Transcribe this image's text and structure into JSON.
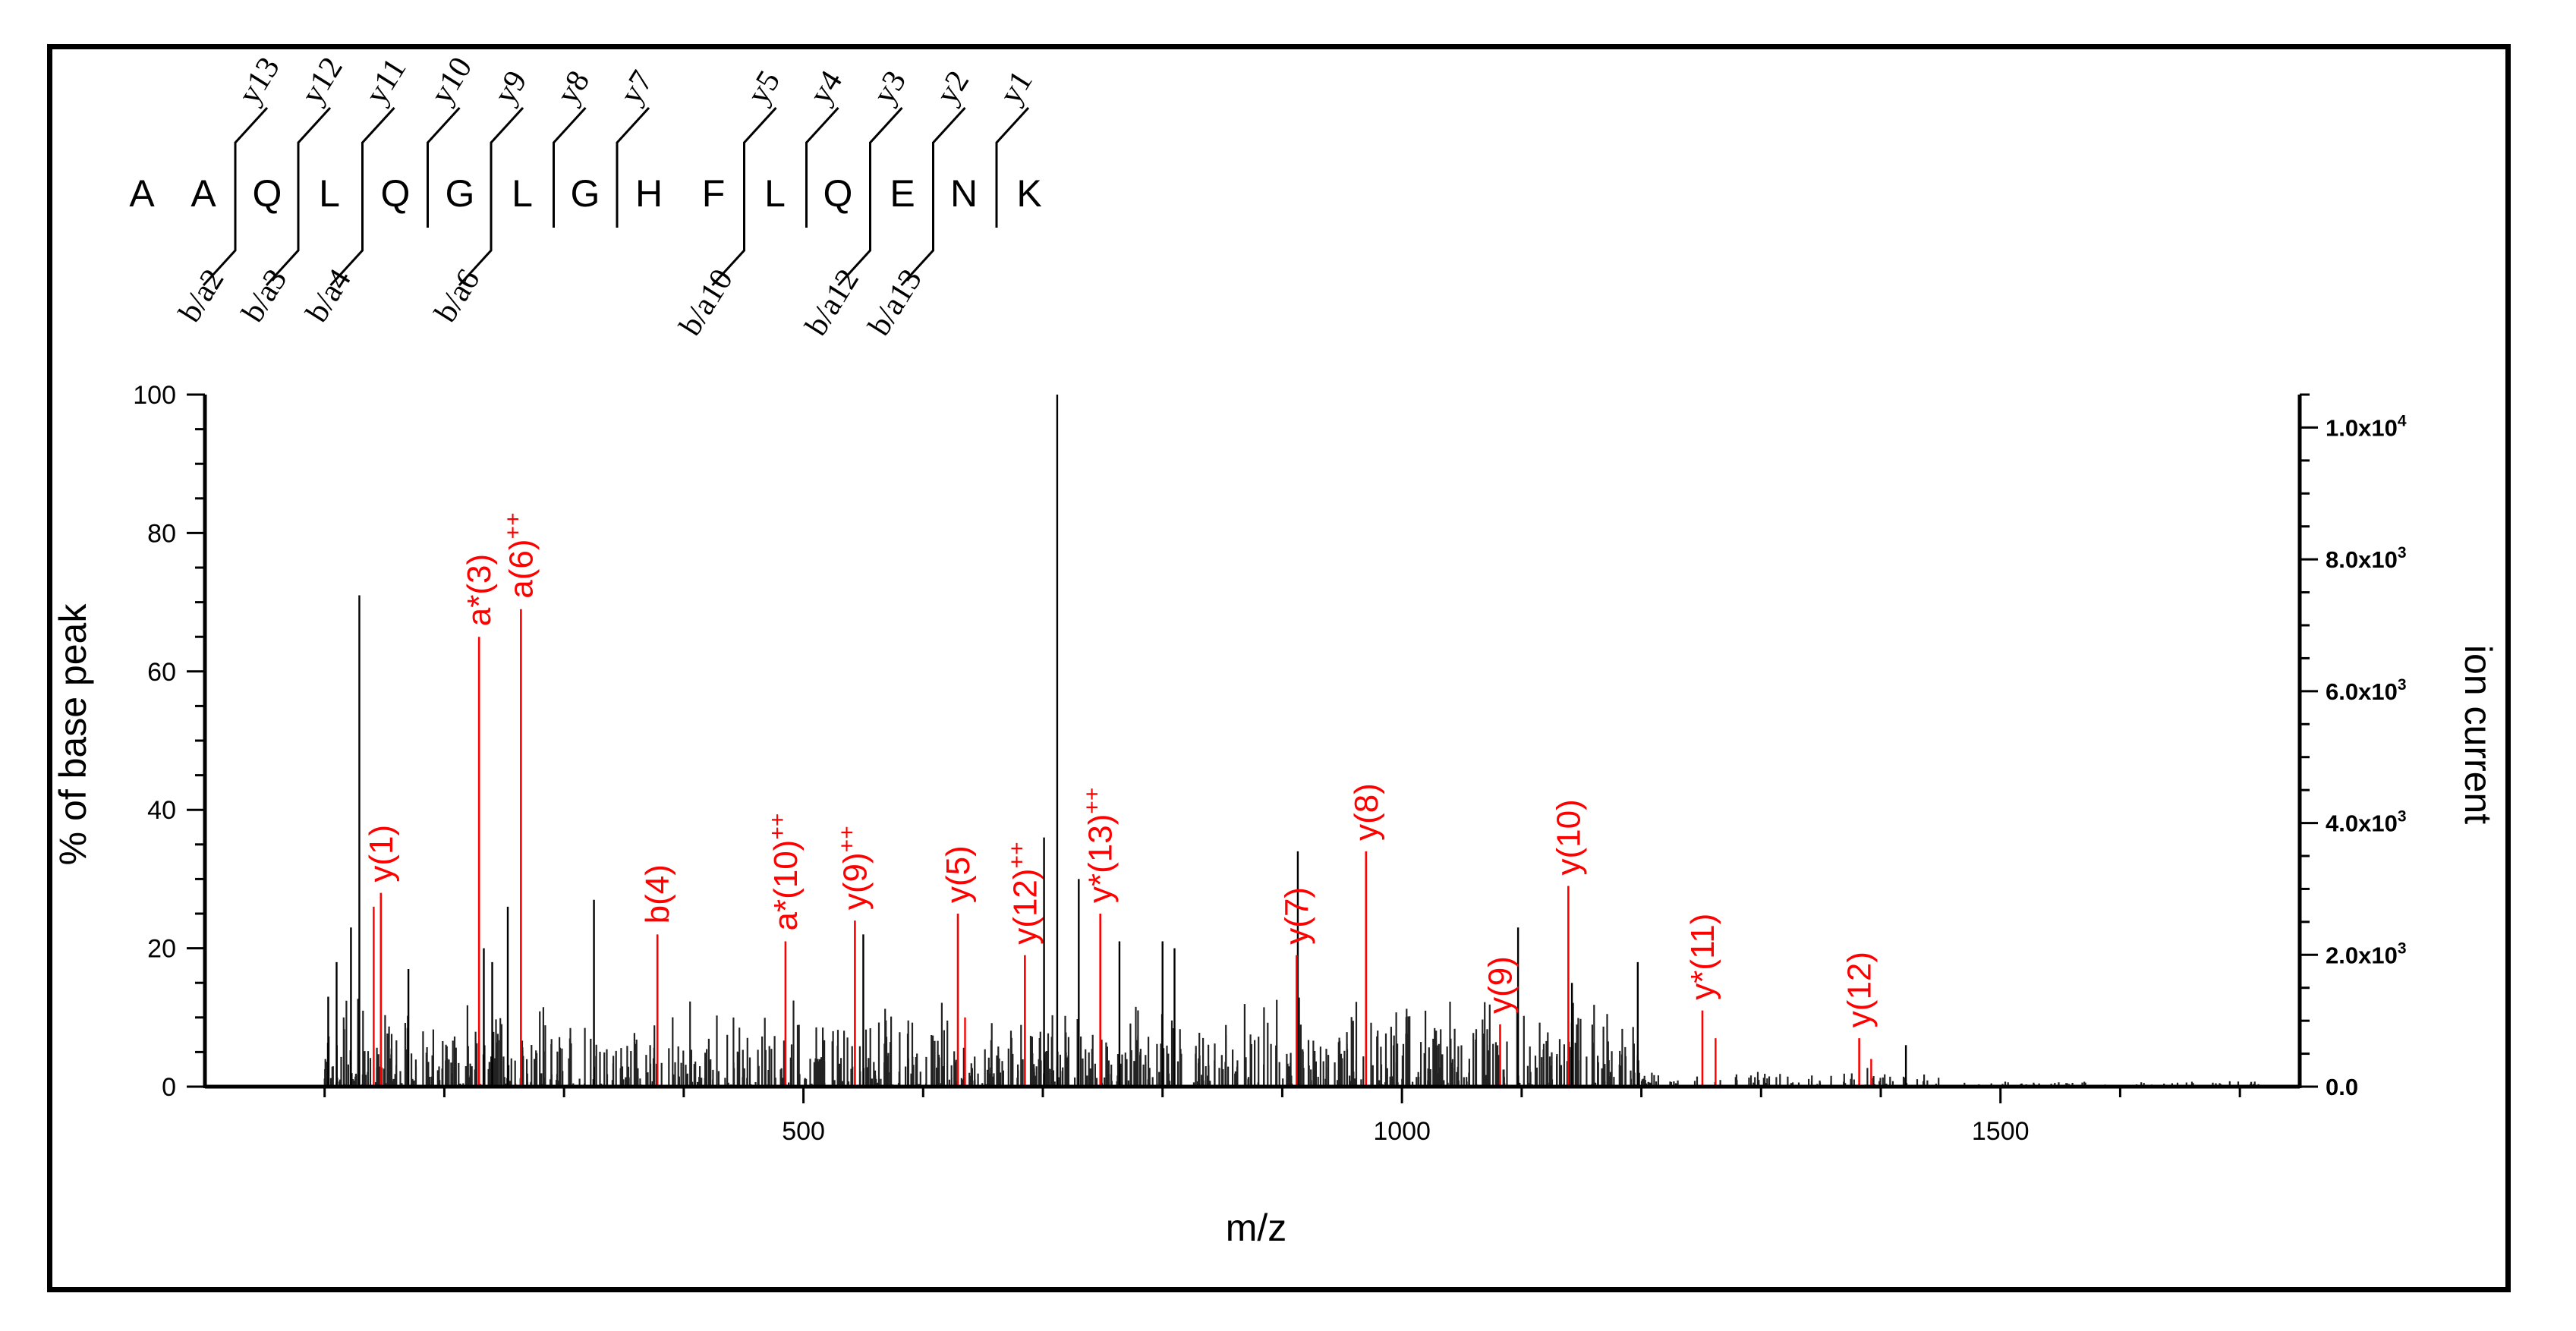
{
  "chart_data": {
    "type": "bar",
    "title": "",
    "xlabel": "m/z",
    "ylabel_left": "% of base peak",
    "ylabel_right": "ion current",
    "xlim": [
      0,
      1750
    ],
    "ylim": [
      0,
      100
    ],
    "xticks": [
      {
        "value": 500,
        "label": "500"
      },
      {
        "value": 1000,
        "label": "1000"
      },
      {
        "value": 1500,
        "label": "1500"
      }
    ],
    "yticks_left": [
      {
        "value": 0,
        "label": "0"
      },
      {
        "value": 20,
        "label": "20"
      },
      {
        "value": 40,
        "label": "40"
      },
      {
        "value": 60,
        "label": "60"
      },
      {
        "value": 80,
        "label": "80"
      },
      {
        "value": 100,
        "label": "100"
      }
    ],
    "yticks_right": [
      {
        "value": 0,
        "base": "0.0",
        "exp": ""
      },
      {
        "value": 2000,
        "base": "2.0x10",
        "exp": "3"
      },
      {
        "value": 4000,
        "base": "4.0x10",
        "exp": "3"
      },
      {
        "value": 6000,
        "base": "6.0x10",
        "exp": "3"
      },
      {
        "value": 8000,
        "base": "8.0x10",
        "exp": "3"
      },
      {
        "value": 10000,
        "base": "1.0x10",
        "exp": "4"
      }
    ],
    "right_axis_max": 10500,
    "peptide": {
      "residues": [
        "A",
        "A",
        "Q",
        "L",
        "Q",
        "G",
        "L",
        "G",
        "H",
        "F",
        "L",
        "Q",
        "E",
        "N",
        "K"
      ],
      "y_ions": [
        {
          "after": 2,
          "label": "y13"
        },
        {
          "after": 3,
          "label": "y12"
        },
        {
          "after": 4,
          "label": "y11"
        },
        {
          "after": 5,
          "label": "y10"
        },
        {
          "after": 6,
          "label": "y9"
        },
        {
          "after": 7,
          "label": "y8"
        },
        {
          "after": 8,
          "label": "y7"
        },
        {
          "after": 10,
          "label": "y5"
        },
        {
          "after": 11,
          "label": "y4"
        },
        {
          "after": 12,
          "label": "y3"
        },
        {
          "after": 13,
          "label": "y2"
        },
        {
          "after": 14,
          "label": "y1"
        }
      ],
      "b_ions": [
        {
          "after": 2,
          "label": "b/a2"
        },
        {
          "after": 3,
          "label": "b/a3"
        },
        {
          "after": 4,
          "label": "b/a4"
        },
        {
          "after": 6,
          "label": "b/a6"
        },
        {
          "after": 10,
          "label": "b/a10"
        },
        {
          "after": 12,
          "label": "b/a12"
        },
        {
          "after": 13,
          "label": "b/a13"
        }
      ]
    },
    "matched_peaks": [
      {
        "mz": 147,
        "intensity": 28,
        "label": "y(1)",
        "sup": ""
      },
      {
        "mz": 229,
        "intensity": 65,
        "label": "a*(3)",
        "sup": ""
      },
      {
        "mz": 264,
        "intensity": 69,
        "label": "a(6)",
        "sup": "++"
      },
      {
        "mz": 378,
        "intensity": 22,
        "label": "b(4)",
        "sup": ""
      },
      {
        "mz": 485,
        "intensity": 21,
        "label": "a*(10)",
        "sup": "++"
      },
      {
        "mz": 543,
        "intensity": 24,
        "label": "y(9)",
        "sup": "++"
      },
      {
        "mz": 629,
        "intensity": 25,
        "label": "y(5)",
        "sup": ""
      },
      {
        "mz": 685,
        "intensity": 19,
        "label": "y(12)",
        "sup": "++"
      },
      {
        "mz": 748,
        "intensity": 25,
        "label": "y*(13)",
        "sup": "++"
      },
      {
        "mz": 912,
        "intensity": 19,
        "label": "y(7)",
        "sup": ""
      },
      {
        "mz": 970,
        "intensity": 34,
        "label": "y(8)",
        "sup": ""
      },
      {
        "mz": 1082,
        "intensity": 9,
        "label": "y(9)",
        "sup": ""
      },
      {
        "mz": 1139,
        "intensity": 29,
        "label": "y(10)",
        "sup": ""
      },
      {
        "mz": 1251,
        "intensity": 11,
        "label": "y*(11)",
        "sup": ""
      },
      {
        "mz": 1382,
        "intensity": 7,
        "label": "y(12)",
        "sup": ""
      }
    ],
    "extra_matched_peaks": [
      {
        "mz": 141,
        "intensity": 26
      },
      {
        "mz": 1262,
        "intensity": 7
      },
      {
        "mz": 1392,
        "intensity": 4
      },
      {
        "mz": 635,
        "intensity": 10
      }
    ],
    "major_unmatched_peaks": [
      {
        "mz": 129,
        "intensity": 71
      },
      {
        "mz": 712,
        "intensity": 100
      },
      {
        "mz": 701,
        "intensity": 36
      },
      {
        "mz": 122,
        "intensity": 23
      },
      {
        "mz": 325,
        "intensity": 27
      },
      {
        "mz": 253,
        "intensity": 26
      },
      {
        "mz": 913,
        "intensity": 34
      },
      {
        "mz": 1097,
        "intensity": 23
      },
      {
        "mz": 1197,
        "intensity": 18
      },
      {
        "mz": 550,
        "intensity": 22
      },
      {
        "mz": 764,
        "intensity": 21
      },
      {
        "mz": 110,
        "intensity": 18
      },
      {
        "mz": 170,
        "intensity": 17
      },
      {
        "mz": 233,
        "intensity": 20
      },
      {
        "mz": 800,
        "intensity": 21
      },
      {
        "mz": 810,
        "intensity": 20
      },
      {
        "mz": 730,
        "intensity": 30
      },
      {
        "mz": 1142,
        "intensity": 15
      },
      {
        "mz": 1421,
        "intensity": 6
      },
      {
        "mz": 240,
        "intensity": 18
      },
      {
        "mz": 103,
        "intensity": 13
      }
    ],
    "noise_seed": 7,
    "noise_count": 1300,
    "colors": {
      "axis": "#000000",
      "peak": "#000000",
      "matched": "#ff0000"
    }
  }
}
